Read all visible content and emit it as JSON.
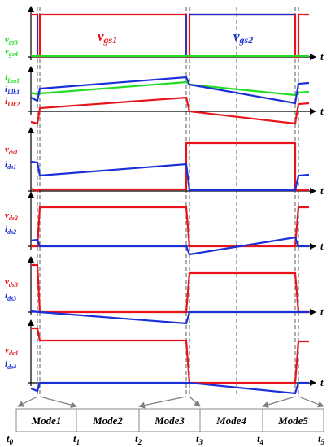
{
  "colors": {
    "red": "#e8141b",
    "blue": "#1a2fd6",
    "green": "#22dd22",
    "black": "#000000",
    "gray": "#808080"
  },
  "panels": [
    {
      "id": "gate",
      "labels": [
        {
          "text": "v",
          "sub": "gs3",
          "color": "green"
        },
        {
          "text": "v",
          "sub": "gs4",
          "color": "green"
        }
      ],
      "big_labels": [
        {
          "text": "v",
          "sub": "gs1",
          "color": "red"
        },
        {
          "text": "v",
          "sub": "gs2",
          "color": "blue"
        }
      ],
      "axis_label": "t"
    },
    {
      "id": "inductor",
      "labels": [
        {
          "text": "i",
          "sub": "Lm1",
          "color": "green"
        },
        {
          "text": "i",
          "sub": "Llk1",
          "color": "blue"
        },
        {
          "text": "i",
          "sub": "Llk2",
          "color": "red"
        }
      ],
      "axis_label": "t"
    },
    {
      "id": "s1",
      "labels": [
        {
          "text": "v",
          "sub": "ds1",
          "color": "red"
        },
        {
          "text": "i",
          "sub": "ds1",
          "color": "blue"
        }
      ],
      "axis_label": "t"
    },
    {
      "id": "s2",
      "labels": [
        {
          "text": "v",
          "sub": "ds2",
          "color": "red"
        },
        {
          "text": "i",
          "sub": "ds2",
          "color": "blue"
        }
      ],
      "axis_label": "t"
    },
    {
      "id": "s3",
      "labels": [
        {
          "text": "v",
          "sub": "ds3",
          "color": "red"
        },
        {
          "text": "i",
          "sub": "ds3",
          "color": "blue"
        }
      ],
      "axis_label": "t"
    },
    {
      "id": "s4",
      "labels": [
        {
          "text": "v",
          "sub": "ds4",
          "color": "red"
        },
        {
          "text": "i",
          "sub": "ds4",
          "color": "blue"
        }
      ],
      "axis_label": "t"
    }
  ],
  "modes": [
    "Mode1",
    "Mode2",
    "Mode3",
    "Mode4",
    "Mode5"
  ],
  "time_labels": [
    {
      "text": "t",
      "sub": "0"
    },
    {
      "text": "t",
      "sub": "1"
    },
    {
      "text": "t",
      "sub": "2"
    },
    {
      "text": "t",
      "sub": "3"
    },
    {
      "text": "t",
      "sub": "4"
    },
    {
      "text": "t",
      "sub": "5"
    }
  ]
}
